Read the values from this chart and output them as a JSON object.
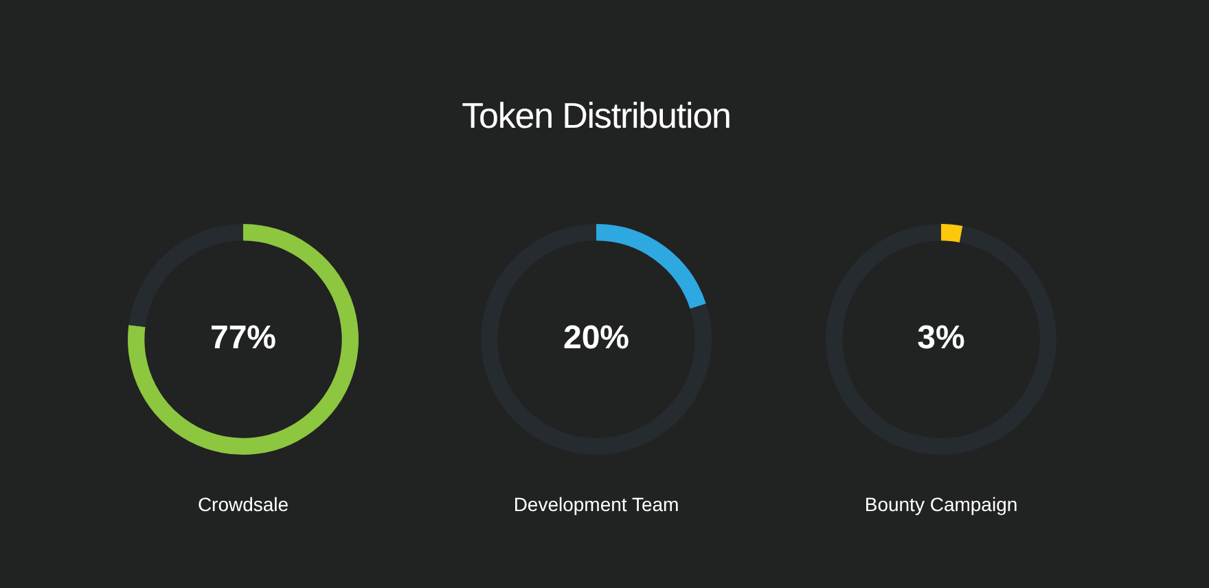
{
  "chart_data": [
    {
      "type": "donut",
      "xlabel": "Crowdsale",
      "categories": [
        null,
        null
      ],
      "values": [
        77,
        23
      ],
      "colors": [
        "#8dc63f",
        "#262b30"
      ],
      "value_labels": [
        "77%",
        null
      ]
    },
    {
      "type": "donut",
      "title": "Token Distribution",
      "xlabel": "Development Team",
      "categories": [
        null,
        null
      ],
      "values": [
        20,
        80
      ],
      "colors": [
        "#2ea8e0",
        "#262b30"
      ],
      "value_labels": [
        "20%",
        null
      ]
    },
    {
      "type": "donut",
      "xlabel": "Bounty Campaign",
      "categories": [
        null,
        null
      ],
      "values": [
        3,
        97
      ],
      "colors": [
        "#fdc70c",
        "#262b30"
      ],
      "value_labels": [
        "3%",
        null
      ]
    }
  ]
}
